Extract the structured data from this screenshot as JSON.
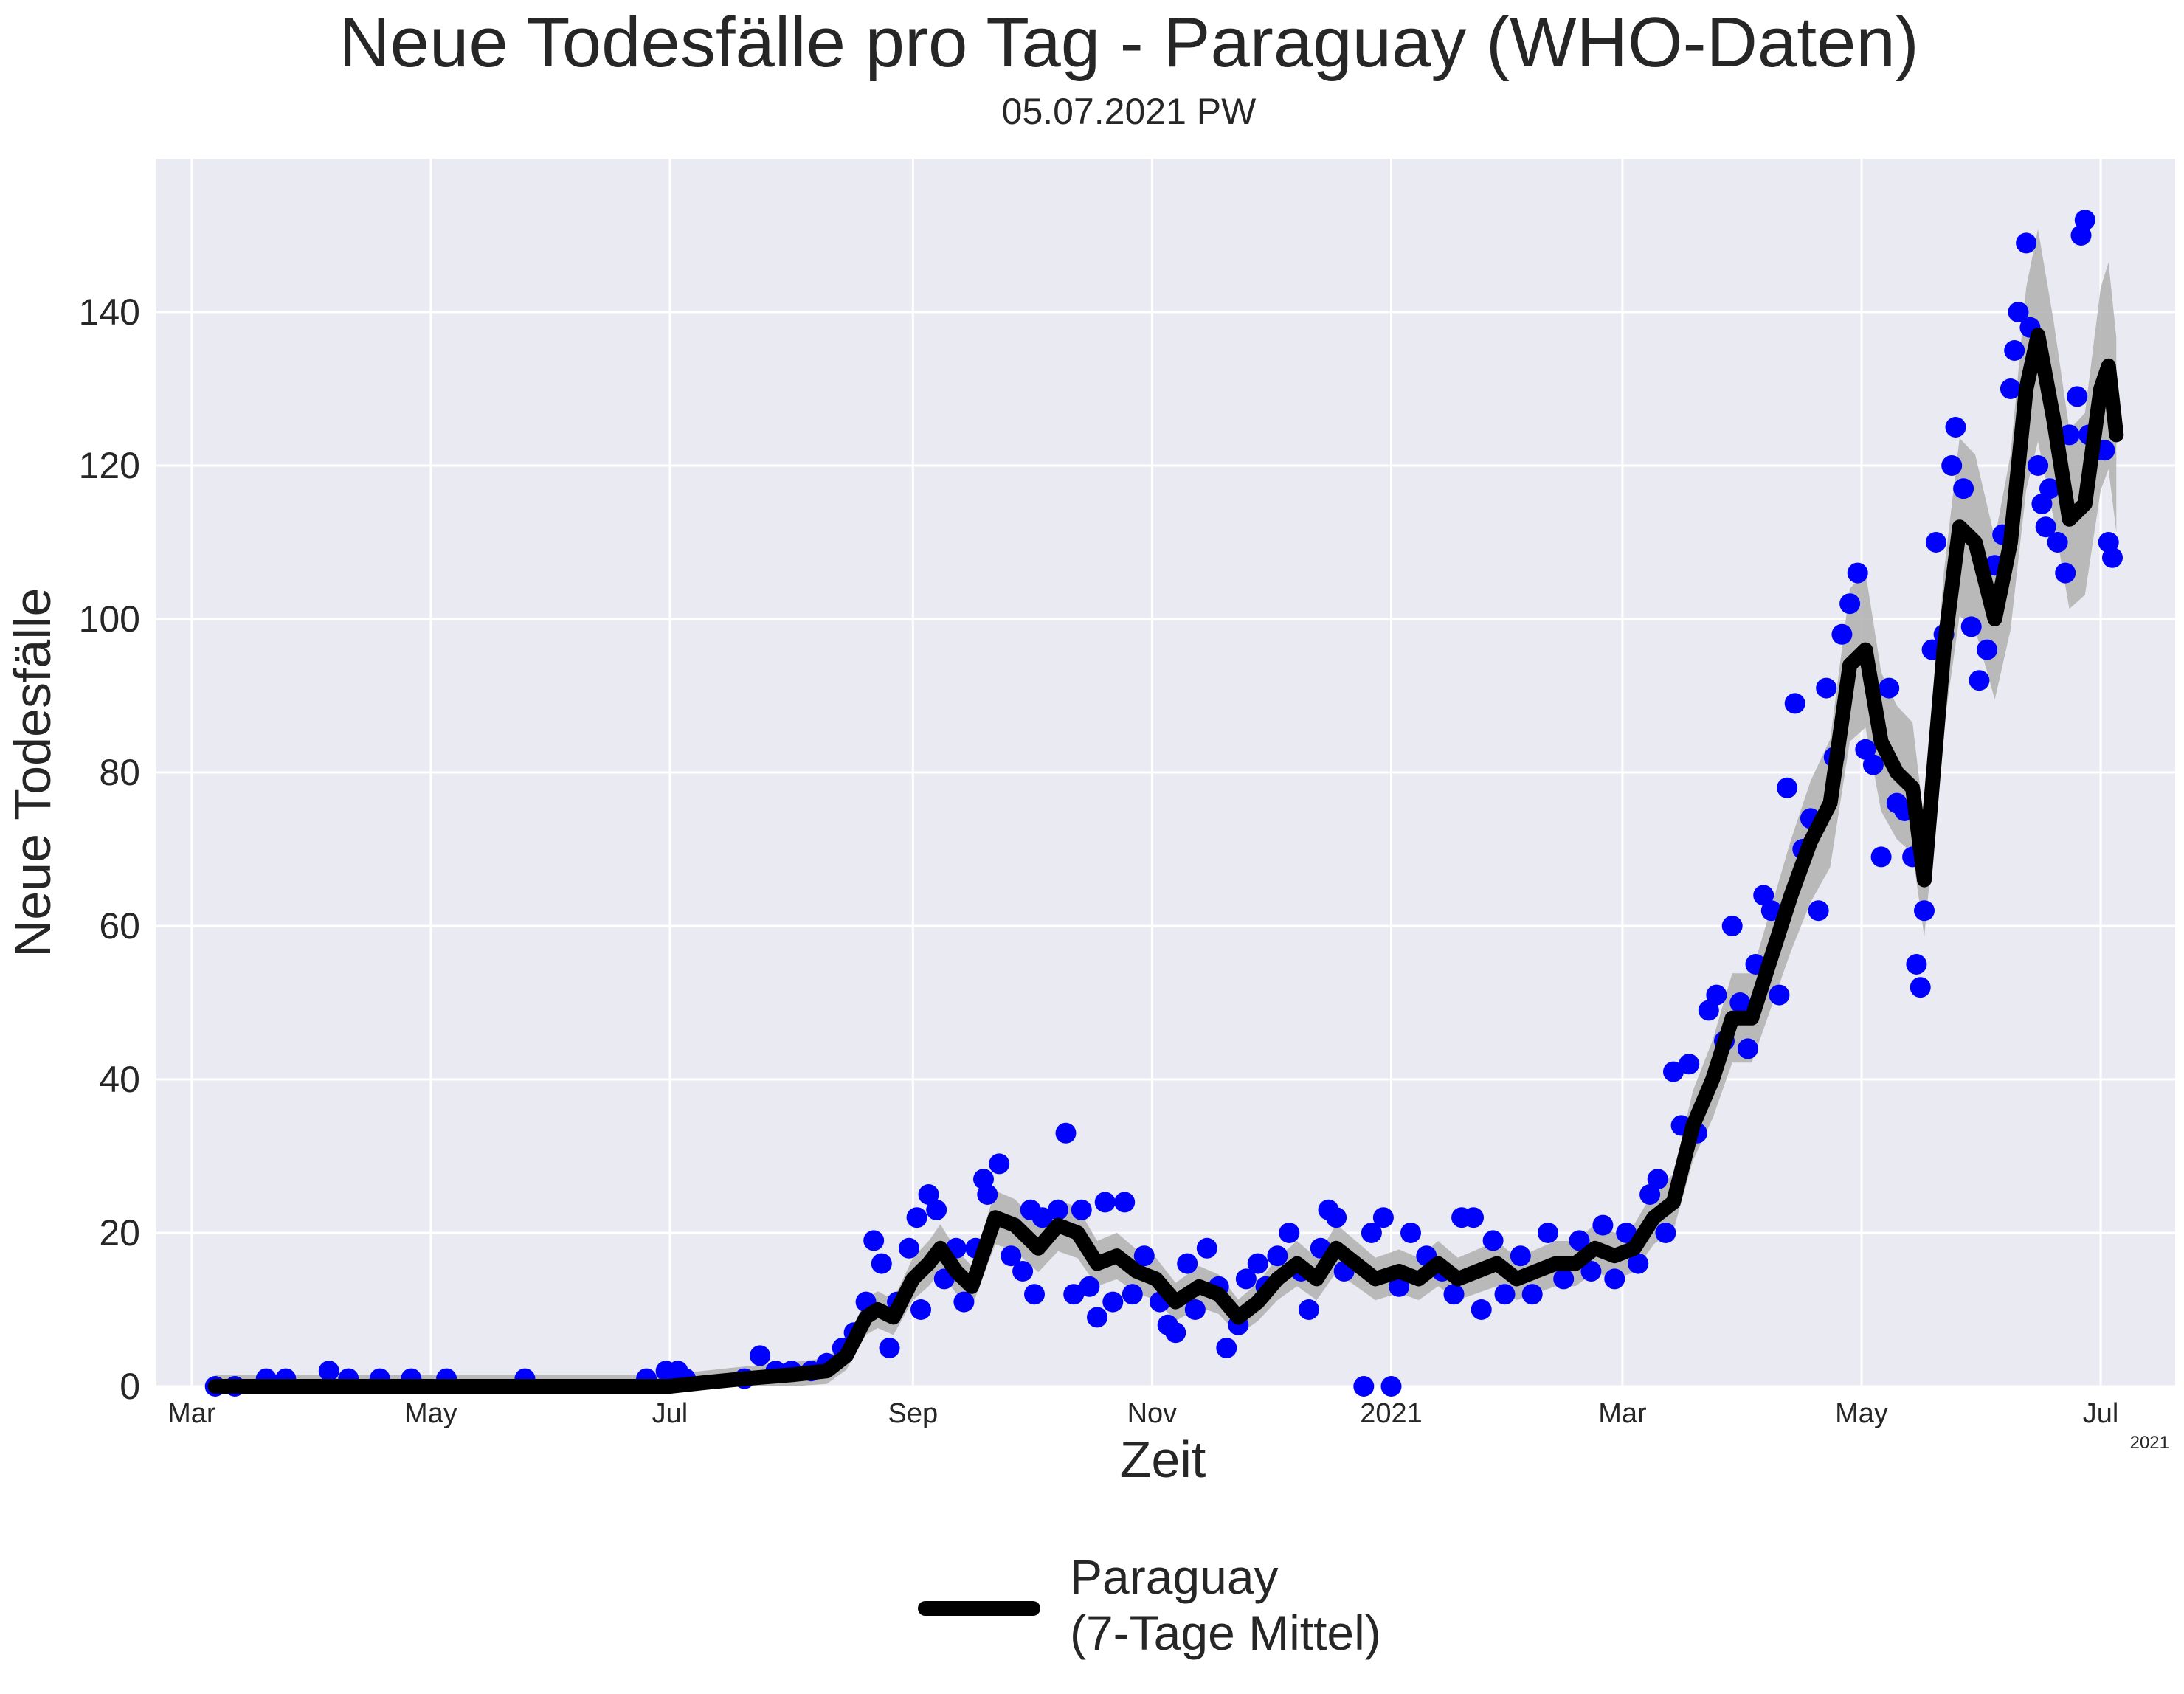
{
  "chart_data": {
    "type": "scatter",
    "title": "Neue Todesfälle pro Tag - Paraguay (WHO-Daten)",
    "subtitle": "05.07.2021 PW",
    "xlabel": "Zeit",
    "ylabel": "Neue Todesfälle",
    "x_offset_label": "2021",
    "xlim": [
      "2020-02-21",
      "2021-07-20"
    ],
    "ylim": [
      0,
      160
    ],
    "grid": true,
    "legend_position": "bottom-center",
    "x_ticks": [
      {
        "date": "2020-03-01",
        "label": "Mar"
      },
      {
        "date": "2020-05-01",
        "label": "May"
      },
      {
        "date": "2020-07-01",
        "label": "Jul"
      },
      {
        "date": "2020-09-01",
        "label": "Sep"
      },
      {
        "date": "2020-11-01",
        "label": "Nov"
      },
      {
        "date": "2021-01-01",
        "label": "2021"
      },
      {
        "date": "2021-03-01",
        "label": "Mar"
      },
      {
        "date": "2021-05-01",
        "label": "May"
      },
      {
        "date": "2021-07-01",
        "label": "Jul"
      }
    ],
    "y_ticks": [
      0,
      20,
      40,
      60,
      80,
      100,
      120,
      140
    ],
    "colors": {
      "points": "#0000ff",
      "line": "#000000",
      "band": "#b4b4b4",
      "background": "#eaeaf2",
      "grid": "#ffffff"
    },
    "series": [
      {
        "name": "Paraguay\n(7-Tage Mittel)",
        "role": "rolling-mean",
        "points": [
          [
            "2020-03-07",
            0
          ],
          [
            "2020-05-01",
            0
          ],
          [
            "2020-07-01",
            0
          ],
          [
            "2020-07-10",
            0.5
          ],
          [
            "2020-07-20",
            1
          ],
          [
            "2020-08-01",
            1.5
          ],
          [
            "2020-08-10",
            2
          ],
          [
            "2020-08-15",
            4
          ],
          [
            "2020-08-20",
            9
          ],
          [
            "2020-08-23",
            10
          ],
          [
            "2020-08-27",
            9
          ],
          [
            "2020-09-01",
            14
          ],
          [
            "2020-09-05",
            16
          ],
          [
            "2020-09-08",
            18
          ],
          [
            "2020-09-12",
            15
          ],
          [
            "2020-09-16",
            13
          ],
          [
            "2020-09-22",
            22
          ],
          [
            "2020-09-27",
            21
          ],
          [
            "2020-10-03",
            18
          ],
          [
            "2020-10-08",
            21
          ],
          [
            "2020-10-13",
            20
          ],
          [
            "2020-10-18",
            16
          ],
          [
            "2020-10-23",
            17
          ],
          [
            "2020-10-28",
            15
          ],
          [
            "2020-11-02",
            14
          ],
          [
            "2020-11-07",
            11
          ],
          [
            "2020-11-13",
            13
          ],
          [
            "2020-11-18",
            12
          ],
          [
            "2020-11-23",
            9
          ],
          [
            "2020-11-28",
            11
          ],
          [
            "2020-12-03",
            14
          ],
          [
            "2020-12-08",
            16
          ],
          [
            "2020-12-13",
            14
          ],
          [
            "2020-12-18",
            18
          ],
          [
            "2020-12-23",
            16
          ],
          [
            "2020-12-28",
            14
          ],
          [
            "2021-01-03",
            15
          ],
          [
            "2021-01-08",
            14
          ],
          [
            "2021-01-13",
            16
          ],
          [
            "2021-01-18",
            14
          ],
          [
            "2021-01-23",
            15
          ],
          [
            "2021-01-28",
            16
          ],
          [
            "2021-02-02",
            14
          ],
          [
            "2021-02-07",
            15
          ],
          [
            "2021-02-12",
            16
          ],
          [
            "2021-02-17",
            16
          ],
          [
            "2021-02-22",
            18
          ],
          [
            "2021-02-27",
            17
          ],
          [
            "2021-03-04",
            18
          ],
          [
            "2021-03-09",
            22
          ],
          [
            "2021-03-14",
            24
          ],
          [
            "2021-03-19",
            34
          ],
          [
            "2021-03-24",
            40
          ],
          [
            "2021-03-29",
            48
          ],
          [
            "2021-04-03",
            48
          ],
          [
            "2021-04-08",
            56
          ],
          [
            "2021-04-13",
            64
          ],
          [
            "2021-04-18",
            71
          ],
          [
            "2021-04-23",
            76
          ],
          [
            "2021-04-28",
            94
          ],
          [
            "2021-05-02",
            96
          ],
          [
            "2021-05-06",
            84
          ],
          [
            "2021-05-10",
            80
          ],
          [
            "2021-05-14",
            78
          ],
          [
            "2021-05-17",
            66
          ],
          [
            "2021-05-22",
            96
          ],
          [
            "2021-05-26",
            112
          ],
          [
            "2021-05-30",
            110
          ],
          [
            "2021-06-04",
            100
          ],
          [
            "2021-06-08",
            110
          ],
          [
            "2021-06-12",
            130
          ],
          [
            "2021-06-15",
            137
          ],
          [
            "2021-06-19",
            126
          ],
          [
            "2021-06-23",
            113
          ],
          [
            "2021-06-27",
            115
          ],
          [
            "2021-07-01",
            130
          ],
          [
            "2021-07-03",
            133
          ],
          [
            "2021-07-05",
            124
          ]
        ]
      },
      {
        "name": "",
        "role": "daily",
        "points": [
          [
            "2020-03-07",
            0
          ],
          [
            "2020-03-12",
            0
          ],
          [
            "2020-03-20",
            1
          ],
          [
            "2020-03-25",
            1
          ],
          [
            "2020-04-05",
            2
          ],
          [
            "2020-04-10",
            1
          ],
          [
            "2020-04-18",
            1
          ],
          [
            "2020-04-26",
            1
          ],
          [
            "2020-05-05",
            1
          ],
          [
            "2020-05-25",
            1
          ],
          [
            "2020-06-25",
            1
          ],
          [
            "2020-06-30",
            2
          ],
          [
            "2020-07-03",
            2
          ],
          [
            "2020-07-05",
            1
          ],
          [
            "2020-07-20",
            1
          ],
          [
            "2020-07-24",
            4
          ],
          [
            "2020-07-28",
            2
          ],
          [
            "2020-08-01",
            2
          ],
          [
            "2020-08-06",
            2
          ],
          [
            "2020-08-10",
            3
          ],
          [
            "2020-08-14",
            5
          ],
          [
            "2020-08-17",
            7
          ],
          [
            "2020-08-20",
            11
          ],
          [
            "2020-08-22",
            19
          ],
          [
            "2020-08-24",
            16
          ],
          [
            "2020-08-26",
            5
          ],
          [
            "2020-08-28",
            11
          ],
          [
            "2020-08-31",
            18
          ],
          [
            "2020-09-02",
            22
          ],
          [
            "2020-09-03",
            10
          ],
          [
            "2020-09-05",
            25
          ],
          [
            "2020-09-07",
            23
          ],
          [
            "2020-09-09",
            14
          ],
          [
            "2020-09-12",
            18
          ],
          [
            "2020-09-14",
            11
          ],
          [
            "2020-09-17",
            18
          ],
          [
            "2020-09-19",
            27
          ],
          [
            "2020-09-20",
            25
          ],
          [
            "2020-09-23",
            29
          ],
          [
            "2020-09-26",
            17
          ],
          [
            "2020-09-29",
            15
          ],
          [
            "2020-10-01",
            23
          ],
          [
            "2020-10-02",
            12
          ],
          [
            "2020-10-04",
            22
          ],
          [
            "2020-10-08",
            23
          ],
          [
            "2020-10-10",
            33
          ],
          [
            "2020-10-12",
            12
          ],
          [
            "2020-10-14",
            23
          ],
          [
            "2020-10-16",
            13
          ],
          [
            "2020-10-18",
            9
          ],
          [
            "2020-10-20",
            24
          ],
          [
            "2020-10-22",
            11
          ],
          [
            "2020-10-25",
            24
          ],
          [
            "2020-10-27",
            12
          ],
          [
            "2020-10-30",
            17
          ],
          [
            "2020-11-03",
            11
          ],
          [
            "2020-11-05",
            8
          ],
          [
            "2020-11-07",
            7
          ],
          [
            "2020-11-10",
            16
          ],
          [
            "2020-11-12",
            10
          ],
          [
            "2020-11-15",
            18
          ],
          [
            "2020-11-18",
            13
          ],
          [
            "2020-11-20",
            5
          ],
          [
            "2020-11-23",
            8
          ],
          [
            "2020-11-25",
            14
          ],
          [
            "2020-11-28",
            16
          ],
          [
            "2020-11-30",
            13
          ],
          [
            "2020-12-03",
            17
          ],
          [
            "2020-12-06",
            20
          ],
          [
            "2020-12-09",
            15
          ],
          [
            "2020-12-11",
            10
          ],
          [
            "2020-12-14",
            18
          ],
          [
            "2020-12-16",
            23
          ],
          [
            "2020-12-18",
            22
          ],
          [
            "2020-12-20",
            15
          ],
          [
            "2020-12-25",
            0
          ],
          [
            "2020-12-27",
            20
          ],
          [
            "2020-12-30",
            22
          ],
          [
            "2021-01-01",
            0
          ],
          [
            "2021-01-03",
            13
          ],
          [
            "2021-01-06",
            20
          ],
          [
            "2021-01-10",
            17
          ],
          [
            "2021-01-14",
            15
          ],
          [
            "2021-01-17",
            12
          ],
          [
            "2021-01-19",
            22
          ],
          [
            "2021-01-22",
            22
          ],
          [
            "2021-01-24",
            10
          ],
          [
            "2021-01-27",
            19
          ],
          [
            "2021-01-30",
            12
          ],
          [
            "2021-02-03",
            17
          ],
          [
            "2021-02-06",
            12
          ],
          [
            "2021-02-10",
            20
          ],
          [
            "2021-02-14",
            14
          ],
          [
            "2021-02-18",
            19
          ],
          [
            "2021-02-21",
            15
          ],
          [
            "2021-02-24",
            21
          ],
          [
            "2021-02-27",
            14
          ],
          [
            "2021-03-02",
            20
          ],
          [
            "2021-03-05",
            16
          ],
          [
            "2021-03-08",
            25
          ],
          [
            "2021-03-10",
            27
          ],
          [
            "2021-03-12",
            20
          ],
          [
            "2021-03-14",
            41
          ],
          [
            "2021-03-16",
            34
          ],
          [
            "2021-03-18",
            42
          ],
          [
            "2021-03-20",
            33
          ],
          [
            "2021-03-23",
            49
          ],
          [
            "2021-03-25",
            51
          ],
          [
            "2021-03-27",
            45
          ],
          [
            "2021-03-29",
            60
          ],
          [
            "2021-03-31",
            50
          ],
          [
            "2021-04-02",
            44
          ],
          [
            "2021-04-04",
            55
          ],
          [
            "2021-04-06",
            64
          ],
          [
            "2021-04-08",
            62
          ],
          [
            "2021-04-10",
            51
          ],
          [
            "2021-04-12",
            78
          ],
          [
            "2021-04-14",
            89
          ],
          [
            "2021-04-16",
            70
          ],
          [
            "2021-04-18",
            74
          ],
          [
            "2021-04-20",
            62
          ],
          [
            "2021-04-22",
            91
          ],
          [
            "2021-04-24",
            82
          ],
          [
            "2021-04-26",
            98
          ],
          [
            "2021-04-28",
            102
          ],
          [
            "2021-04-30",
            106
          ],
          [
            "2021-05-02",
            83
          ],
          [
            "2021-05-04",
            81
          ],
          [
            "2021-05-06",
            69
          ],
          [
            "2021-05-08",
            91
          ],
          [
            "2021-05-10",
            76
          ],
          [
            "2021-05-12",
            75
          ],
          [
            "2021-05-14",
            69
          ],
          [
            "2021-05-15",
            55
          ],
          [
            "2021-05-16",
            52
          ],
          [
            "2021-05-17",
            62
          ],
          [
            "2021-05-19",
            96
          ],
          [
            "2021-05-20",
            110
          ],
          [
            "2021-05-22",
            98
          ],
          [
            "2021-05-24",
            120
          ],
          [
            "2021-05-25",
            125
          ],
          [
            "2021-05-27",
            117
          ],
          [
            "2021-05-29",
            99
          ],
          [
            "2021-05-31",
            92
          ],
          [
            "2021-06-02",
            96
          ],
          [
            "2021-06-04",
            107
          ],
          [
            "2021-06-06",
            111
          ],
          [
            "2021-06-08",
            130
          ],
          [
            "2021-06-09",
            135
          ],
          [
            "2021-06-10",
            140
          ],
          [
            "2021-06-12",
            149
          ],
          [
            "2021-06-13",
            138
          ],
          [
            "2021-06-15",
            120
          ],
          [
            "2021-06-16",
            115
          ],
          [
            "2021-06-17",
            112
          ],
          [
            "2021-06-18",
            117
          ],
          [
            "2021-06-20",
            110
          ],
          [
            "2021-06-22",
            106
          ],
          [
            "2021-06-23",
            124
          ],
          [
            "2021-06-25",
            129
          ],
          [
            "2021-06-26",
            150
          ],
          [
            "2021-06-27",
            152
          ],
          [
            "2021-06-28",
            124
          ],
          [
            "2021-06-30",
            122
          ],
          [
            "2021-07-02",
            122
          ],
          [
            "2021-07-03",
            110
          ],
          [
            "2021-07-04",
            108
          ]
        ]
      }
    ]
  }
}
